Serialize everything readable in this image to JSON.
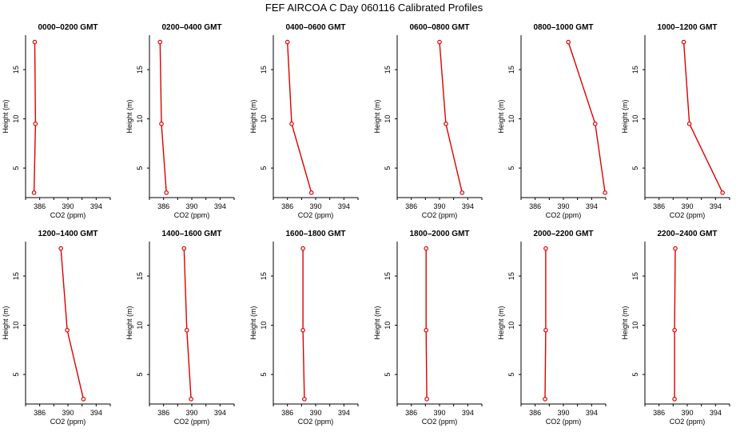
{
  "title": "FEF AIRCOA C  Day 060116  Calibrated Profiles",
  "colors": {
    "series": "#dd0000",
    "axis": "#000000",
    "background": "#ffffff"
  },
  "chart_data": [
    {
      "type": "line",
      "title": "0000–0200 GMT",
      "xlabel": "CO2 (ppm)",
      "ylabel": "Height (m)",
      "xlim": [
        384,
        396
      ],
      "ylim": [
        2,
        18.5
      ],
      "xticks": [
        386,
        390,
        394
      ],
      "yticks": [
        5,
        10,
        15
      ],
      "series": [
        {
          "x": [
            385.2,
            385.4,
            385.3
          ],
          "y": [
            2.5,
            9.5,
            17.8
          ]
        }
      ]
    },
    {
      "type": "line",
      "title": "0200–0400 GMT",
      "xlabel": "CO2 (ppm)",
      "ylabel": "Height (m)",
      "xlim": [
        384,
        396
      ],
      "ylim": [
        2,
        18.5
      ],
      "xticks": [
        386,
        390,
        394
      ],
      "yticks": [
        5,
        10,
        15
      ],
      "series": [
        {
          "x": [
            386.4,
            385.7,
            385.5
          ],
          "y": [
            2.5,
            9.5,
            17.8
          ]
        }
      ]
    },
    {
      "type": "line",
      "title": "0400–0600 GMT",
      "xlabel": "CO2 (ppm)",
      "ylabel": "Height (m)",
      "xlim": [
        384,
        396
      ],
      "ylim": [
        2,
        18.5
      ],
      "xticks": [
        386,
        390,
        394
      ],
      "yticks": [
        5,
        10,
        15
      ],
      "series": [
        {
          "x": [
            389.4,
            386.6,
            386.0
          ],
          "y": [
            2.5,
            9.5,
            17.8
          ]
        }
      ]
    },
    {
      "type": "line",
      "title": "0600–0800 GMT",
      "xlabel": "CO2 (ppm)",
      "ylabel": "Height (m)",
      "xlim": [
        384,
        396
      ],
      "ylim": [
        2,
        18.5
      ],
      "xticks": [
        386,
        390,
        394
      ],
      "yticks": [
        5,
        10,
        15
      ],
      "series": [
        {
          "x": [
            393.2,
            390.9,
            390.0
          ],
          "y": [
            2.5,
            9.5,
            17.8
          ]
        }
      ]
    },
    {
      "type": "line",
      "title": "0800–1000 GMT",
      "xlabel": "CO2 (ppm)",
      "ylabel": "Height (m)",
      "xlim": [
        384,
        396
      ],
      "ylim": [
        2,
        18.5
      ],
      "xticks": [
        386,
        390,
        394
      ],
      "yticks": [
        5,
        10,
        15
      ],
      "series": [
        {
          "x": [
            395.9,
            394.5,
            390.7
          ],
          "y": [
            2.5,
            9.5,
            17.8
          ]
        }
      ]
    },
    {
      "type": "line",
      "title": "1000–1200 GMT",
      "xlabel": "CO2 (ppm)",
      "ylabel": "Height (m)",
      "xlim": [
        384,
        396
      ],
      "ylim": [
        2,
        18.5
      ],
      "xticks": [
        386,
        390,
        394
      ],
      "yticks": [
        5,
        10,
        15
      ],
      "series": [
        {
          "x": [
            395.0,
            390.3,
            389.5
          ],
          "y": [
            2.5,
            9.5,
            17.8
          ]
        }
      ]
    },
    {
      "type": "line",
      "title": "1200–1400 GMT",
      "xlabel": "CO2 (ppm)",
      "ylabel": "Height (m)",
      "xlim": [
        384,
        396
      ],
      "ylim": [
        2,
        18.5
      ],
      "xticks": [
        386,
        390,
        394
      ],
      "yticks": [
        5,
        10,
        15
      ],
      "series": [
        {
          "x": [
            392.2,
            389.9,
            389.0
          ],
          "y": [
            2.5,
            9.5,
            17.8
          ]
        }
      ]
    },
    {
      "type": "line",
      "title": "1400–1600 GMT",
      "xlabel": "CO2 (ppm)",
      "ylabel": "Height (m)",
      "xlim": [
        384,
        396
      ],
      "ylim": [
        2,
        18.5
      ],
      "xticks": [
        386,
        390,
        394
      ],
      "yticks": [
        5,
        10,
        15
      ],
      "series": [
        {
          "x": [
            389.9,
            389.3,
            388.9
          ],
          "y": [
            2.5,
            9.5,
            17.8
          ]
        }
      ]
    },
    {
      "type": "line",
      "title": "1600–1800 GMT",
      "xlabel": "CO2 (ppm)",
      "ylabel": "Height (m)",
      "xlim": [
        384,
        396
      ],
      "ylim": [
        2,
        18.5
      ],
      "xticks": [
        386,
        390,
        394
      ],
      "yticks": [
        5,
        10,
        15
      ],
      "series": [
        {
          "x": [
            388.4,
            388.2,
            388.2
          ],
          "y": [
            2.5,
            9.5,
            17.8
          ]
        }
      ]
    },
    {
      "type": "line",
      "title": "1800–2000 GMT",
      "xlabel": "CO2 (ppm)",
      "ylabel": "Height (m)",
      "xlim": [
        384,
        396
      ],
      "ylim": [
        2,
        18.5
      ],
      "xticks": [
        386,
        390,
        394
      ],
      "yticks": [
        5,
        10,
        15
      ],
      "series": [
        {
          "x": [
            388.2,
            388.1,
            388.1
          ],
          "y": [
            2.5,
            9.5,
            17.8
          ]
        }
      ]
    },
    {
      "type": "line",
      "title": "2000–2200 GMT",
      "xlabel": "CO2 (ppm)",
      "ylabel": "Height (m)",
      "xlim": [
        384,
        396
      ],
      "ylim": [
        2,
        18.5
      ],
      "xticks": [
        386,
        390,
        394
      ],
      "yticks": [
        5,
        10,
        15
      ],
      "series": [
        {
          "x": [
            387.4,
            387.5,
            387.5
          ],
          "y": [
            2.5,
            9.5,
            17.8
          ]
        }
      ]
    },
    {
      "type": "line",
      "title": "2200–2400 GMT",
      "xlabel": "CO2 (ppm)",
      "ylabel": "Height (m)",
      "xlim": [
        384,
        396
      ],
      "ylim": [
        2,
        18.5
      ],
      "xticks": [
        386,
        390,
        394
      ],
      "yticks": [
        5,
        10,
        15
      ],
      "series": [
        {
          "x": [
            388.2,
            388.2,
            388.3
          ],
          "y": [
            2.5,
            9.5,
            17.8
          ]
        }
      ]
    }
  ]
}
